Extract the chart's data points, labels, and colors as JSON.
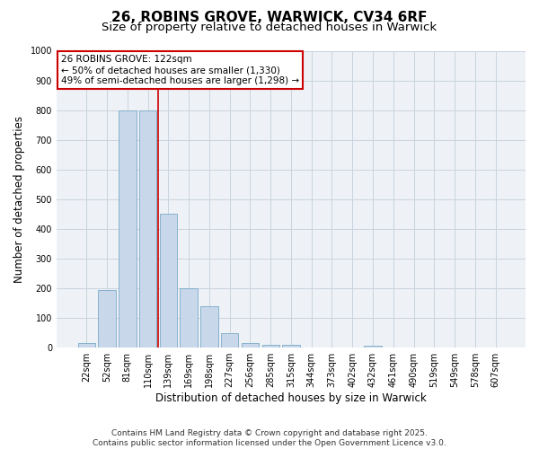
{
  "title_line1": "26, ROBINS GROVE, WARWICK, CV34 6RF",
  "title_line2": "Size of property relative to detached houses in Warwick",
  "xlabel": "Distribution of detached houses by size in Warwick",
  "ylabel": "Number of detached properties",
  "categories": [
    "22sqm",
    "52sqm",
    "81sqm",
    "110sqm",
    "139sqm",
    "169sqm",
    "198sqm",
    "227sqm",
    "256sqm",
    "285sqm",
    "315sqm",
    "344sqm",
    "373sqm",
    "402sqm",
    "432sqm",
    "461sqm",
    "490sqm",
    "519sqm",
    "549sqm",
    "578sqm",
    "607sqm"
  ],
  "values": [
    15,
    195,
    800,
    800,
    450,
    200,
    140,
    50,
    15,
    10,
    10,
    0,
    0,
    0,
    5,
    0,
    0,
    0,
    0,
    0,
    0
  ],
  "bar_color": "#c8d8ea",
  "bar_edge_color": "#7aaac8",
  "reference_line_color": "#cc0000",
  "annotation_text": "26 ROBINS GROVE: 122sqm\n← 50% of detached houses are smaller (1,330)\n49% of semi-detached houses are larger (1,298) →",
  "ylim": [
    0,
    1000
  ],
  "yticks": [
    0,
    100,
    200,
    300,
    400,
    500,
    600,
    700,
    800,
    900,
    1000
  ],
  "grid_color": "#c8d4de",
  "background_color": "#eef2f6",
  "footer_line1": "Contains HM Land Registry data © Crown copyright and database right 2025.",
  "footer_line2": "Contains public sector information licensed under the Open Government Licence v3.0.",
  "title_fontsize": 11,
  "subtitle_fontsize": 9.5,
  "axis_label_fontsize": 8.5,
  "tick_fontsize": 7,
  "annotation_fontsize": 7.5,
  "footer_fontsize": 6.5
}
